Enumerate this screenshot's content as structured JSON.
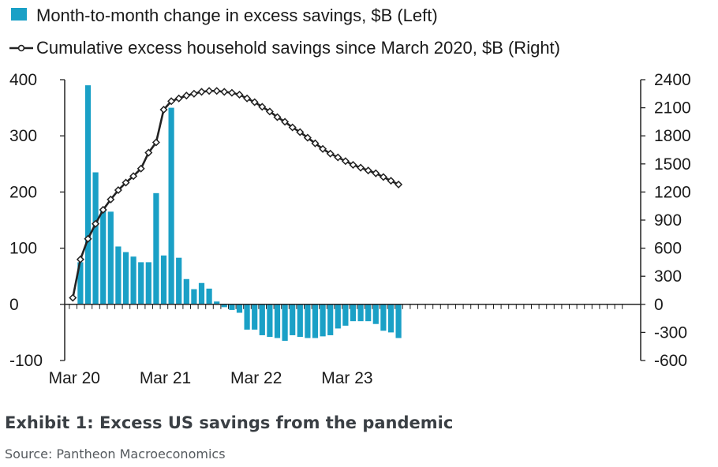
{
  "caption": {
    "title": "Exhibit 1: Excess US savings from the pandemic",
    "source": "Source: Pantheon Macroeconomics"
  },
  "colors": {
    "bar": "#1aa0c6",
    "line": "#222222",
    "axis": "#222222"
  },
  "chart_data": {
    "type": "bar+line",
    "legend_placement": "top-left",
    "grid": false,
    "legend": [
      {
        "key": "bars",
        "label": "Month-to-month change in excess savings, $B (Left)",
        "marker": "square"
      },
      {
        "key": "line",
        "label": "Cumulative excess household savings since March 2020, $B (Right)",
        "marker": "line-with-dot"
      }
    ],
    "x_tick_labels": [
      "Mar 20",
      "Mar 21",
      "Mar 22",
      "Mar 23"
    ],
    "y_left": {
      "ylim": [
        -100,
        400
      ],
      "ticks": [
        400,
        300,
        200,
        100,
        0,
        -100
      ],
      "tick_labels": [
        "400",
        "300",
        "200",
        "100",
        "0",
        "-100"
      ]
    },
    "y_right": {
      "ylim": [
        -600,
        2400
      ],
      "ticks": [
        2400,
        2100,
        1800,
        1500,
        1200,
        900,
        600,
        300,
        0,
        -300,
        -600
      ],
      "tick_labels": [
        "2400",
        "2100",
        "1800",
        "1500",
        "1200",
        "900",
        "600",
        "300",
        "0",
        "-300",
        "-600"
      ]
    },
    "series": [
      {
        "name": "Month-to-month change in excess savings, $B (Left)",
        "type": "bar",
        "axis": "left",
        "start_month_index": 1,
        "values": [
          75,
          390,
          235,
          170,
          165,
          103,
          93,
          85,
          75,
          75,
          198,
          87,
          350,
          83,
          45,
          27,
          38,
          28,
          5,
          -5,
          -10,
          -15,
          -45,
          -45,
          -55,
          -58,
          -60,
          -65,
          -55,
          -58,
          -60,
          -60,
          -57,
          -55,
          -43,
          -38,
          -30,
          -30,
          -30,
          -35,
          -47,
          -50,
          -60
        ]
      },
      {
        "name": "Cumulative excess household savings since March 2020, $B (Right)",
        "type": "line",
        "axis": "right",
        "start_month_index": 0,
        "values": [
          70,
          480,
          700,
          860,
          1010,
          1120,
          1220,
          1300,
          1370,
          1450,
          1620,
          1730,
          2080,
          2170,
          2200,
          2230,
          2250,
          2270,
          2280,
          2280,
          2270,
          2260,
          2240,
          2200,
          2160,
          2110,
          2060,
          2000,
          1950,
          1890,
          1840,
          1780,
          1720,
          1660,
          1610,
          1570,
          1530,
          1490,
          1460,
          1430,
          1400,
          1360,
          1320,
          1280
        ]
      }
    ]
  }
}
